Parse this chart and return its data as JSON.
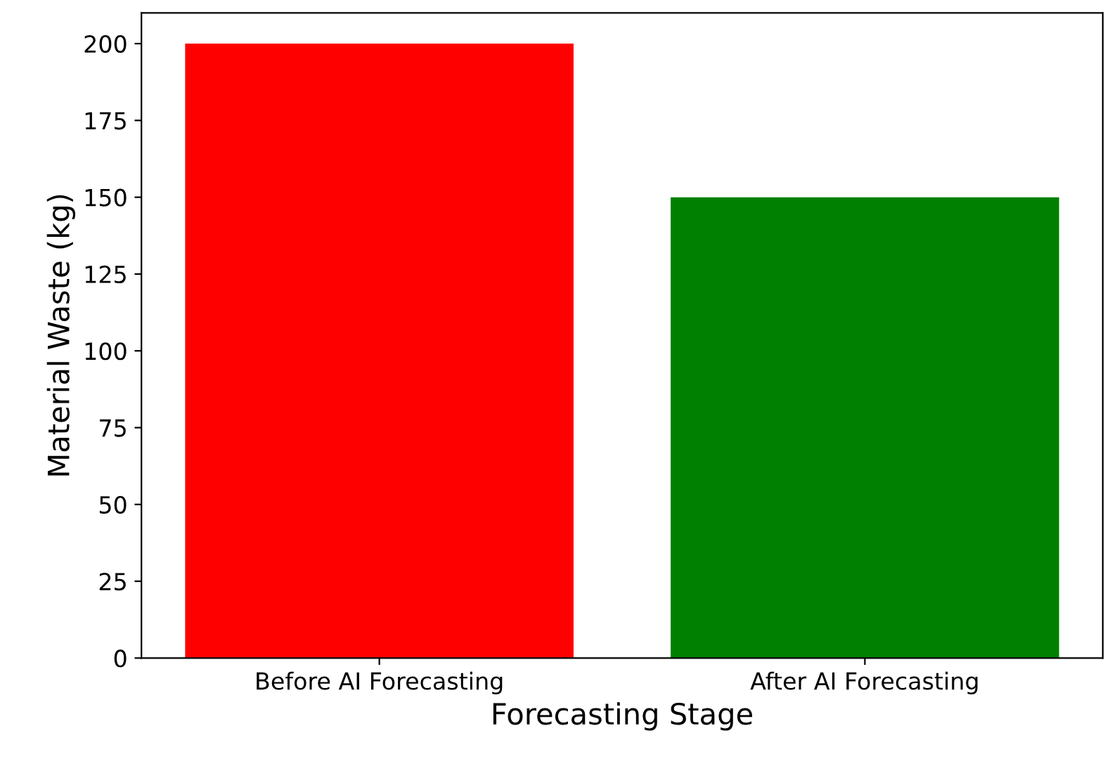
{
  "chart_data": {
    "type": "bar",
    "xlabel": "Forecasting Stage",
    "ylabel": "Material Waste (kg)",
    "categories": [
      "Before AI Forecasting",
      "After AI Forecasting"
    ],
    "values": [
      200,
      150
    ],
    "colors": [
      "#ff0000",
      "#008000"
    ],
    "ylim": [
      0,
      210
    ],
    "yticks": [
      0,
      25,
      50,
      75,
      100,
      125,
      150,
      175,
      200
    ],
    "grid": false,
    "legend": false
  }
}
